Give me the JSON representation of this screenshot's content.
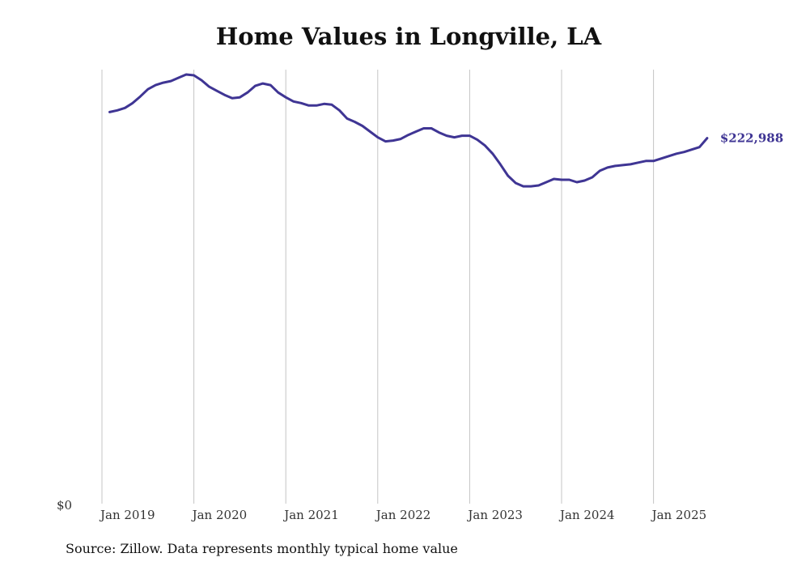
{
  "chart_data": {
    "type": "line",
    "title": "Home Values in Longville, LA",
    "x_ticks": [
      "Jan 2019",
      "Jan 2020",
      "Jan 2021",
      "Jan 2022",
      "Jan 2023",
      "Jan 2024",
      "Jan 2025"
    ],
    "y_ticks": [
      "$0"
    ],
    "ylim": [
      0,
      263000
    ],
    "grid": "vertical",
    "series": [
      {
        "color": "#3f3594",
        "x": [
          "2019-02",
          "2019-03",
          "2019-04",
          "2019-05",
          "2019-06",
          "2019-07",
          "2019-08",
          "2019-09",
          "2019-10",
          "2019-11",
          "2019-12",
          "2020-01",
          "2020-02",
          "2020-03",
          "2020-04",
          "2020-05",
          "2020-06",
          "2020-07",
          "2020-08",
          "2020-09",
          "2020-10",
          "2020-11",
          "2020-12",
          "2021-01",
          "2021-02",
          "2021-03",
          "2021-04",
          "2021-05",
          "2021-06",
          "2021-07",
          "2021-08",
          "2021-09",
          "2021-10",
          "2021-11",
          "2021-12",
          "2022-01",
          "2022-02",
          "2022-03",
          "2022-04",
          "2022-05",
          "2022-06",
          "2022-07",
          "2022-08",
          "2022-09",
          "2022-10",
          "2022-11",
          "2022-12",
          "2023-01",
          "2023-02",
          "2023-03",
          "2023-04",
          "2023-05",
          "2023-06",
          "2023-07",
          "2023-08",
          "2023-09",
          "2023-10",
          "2023-11",
          "2023-12",
          "2024-01",
          "2024-02",
          "2024-03",
          "2024-04",
          "2024-05",
          "2024-06",
          "2024-07",
          "2024-08",
          "2024-09",
          "2024-10",
          "2024-11",
          "2024-12",
          "2025-01",
          "2025-02",
          "2025-03",
          "2025-04",
          "2025-05",
          "2025-06",
          "2025-07",
          "2025-08"
        ],
        "values": [
          239000,
          240000,
          241500,
          244500,
          248500,
          253000,
          255500,
          257000,
          258000,
          260000,
          262000,
          261500,
          258500,
          254500,
          252000,
          249500,
          247500,
          248000,
          251000,
          255000,
          256500,
          255500,
          251000,
          248000,
          245500,
          244500,
          243000,
          243000,
          244000,
          243500,
          240000,
          235000,
          233000,
          230500,
          227000,
          223500,
          221000,
          221500,
          222500,
          225000,
          227000,
          229000,
          229000,
          226500,
          224500,
          223500,
          224500,
          224500,
          222000,
          218500,
          213500,
          207000,
          200000,
          195500,
          193500,
          193500,
          194000,
          196000,
          198000,
          197500,
          197500,
          196000,
          197000,
          199000,
          203000,
          205000,
          206000,
          206500,
          207000,
          208000,
          209000,
          209000,
          210500,
          212000,
          213500,
          214500,
          216000,
          217500,
          223000
        ]
      }
    ],
    "end_label": "$222,988",
    "source": "Source: Zillow. Data represents monthly typical home value"
  }
}
